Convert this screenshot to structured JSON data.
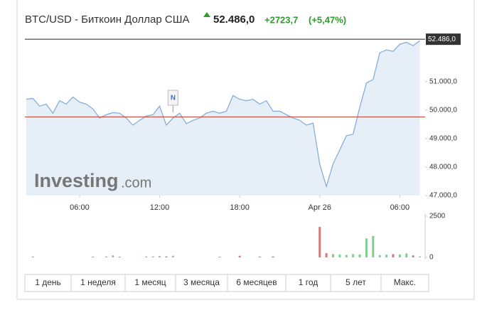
{
  "header": {
    "title": "BTC/USD - Биткоин Доллар США",
    "change": "+2723,7",
    "change_pct": "(+5,47%)"
  },
  "watermark": {
    "brand": "Investing",
    "suffix": ".com"
  },
  "chart_data": [
    {
      "type": "area",
      "x": [
        2.0,
        2.5,
        3.0,
        3.5,
        4.0,
        4.5,
        5.0,
        5.5,
        6.0,
        6.5,
        7.0,
        7.5,
        8.0,
        8.5,
        9.0,
        9.5,
        10.0,
        10.5,
        11.0,
        11.5,
        12.0,
        12.5,
        13.0,
        13.5,
        14.0,
        14.5,
        15.0,
        15.5,
        16.0,
        16.5,
        17.0,
        17.5,
        18.0,
        18.5,
        19.0,
        19.5,
        20.0,
        20.5,
        21.0,
        21.5,
        22.0,
        22.5,
        23.0,
        23.5,
        24.0,
        24.5,
        25.0,
        25.5,
        26.0,
        26.5,
        27.0,
        27.5,
        28.0,
        28.5,
        29.0,
        29.5,
        30.0,
        30.5,
        31.0,
        31.5
      ],
      "values": [
        50380,
        50410,
        50140,
        50210,
        49890,
        50330,
        50210,
        50460,
        50280,
        50210,
        50040,
        49720,
        49840,
        49910,
        49890,
        49720,
        49470,
        49640,
        49790,
        49840,
        50140,
        49470,
        49720,
        49890,
        49520,
        49640,
        49720,
        49890,
        49960,
        49890,
        49960,
        50510,
        50380,
        50330,
        50380,
        50210,
        50330,
        49960,
        49960,
        49840,
        49720,
        49640,
        49470,
        49540,
        48110,
        47320,
        48110,
        48600,
        49100,
        49150,
        50090,
        50950,
        51070,
        52010,
        52110,
        52060,
        52310,
        52380,
        52260,
        52430
      ],
      "color": "#7fa9d6",
      "fill": "#e6eef7",
      "xlim": [
        1.9,
        31.9
      ],
      "xticks": [
        {
          "value": 6,
          "label": "06:00"
        },
        {
          "value": 12,
          "label": "12:00"
        },
        {
          "value": 18,
          "label": "18:00"
        },
        {
          "value": 24,
          "label": "Apr 26"
        },
        {
          "value": 30,
          "label": "06:00"
        }
      ],
      "ylim": [
        47000,
        52490
      ],
      "yticks": [
        {
          "value": 47000,
          "label": "47.000,0"
        },
        {
          "value": 48000,
          "label": "48.000,0"
        },
        {
          "value": 49000,
          "label": "49.000,0"
        },
        {
          "value": 50000,
          "label": "50.000,0"
        },
        {
          "value": 51000,
          "label": "51.000,0"
        }
      ],
      "last": {
        "value": 52486,
        "label": "52.486,0"
      },
      "prev_close": 49760,
      "annotations": [
        {
          "label": "N",
          "x": 13
        }
      ]
    },
    {
      "type": "bar",
      "x": [
        2.0,
        2.5,
        3.0,
        3.5,
        4.0,
        4.5,
        5.0,
        5.5,
        6.0,
        6.5,
        7.0,
        7.5,
        8.0,
        8.5,
        9.0,
        9.5,
        10.0,
        10.5,
        11.0,
        11.5,
        12.0,
        12.5,
        13.0,
        13.5,
        14.0,
        14.5,
        15.0,
        15.5,
        16.0,
        16.5,
        17.0,
        17.5,
        18.0,
        18.5,
        19.0,
        19.5,
        20.0,
        20.5,
        21.0,
        21.5,
        22.0,
        22.5,
        23.0,
        23.5,
        24.0,
        24.5,
        25.0,
        25.5,
        26.0,
        26.5,
        27.0,
        27.5,
        28.0,
        28.5,
        29.0,
        29.5,
        30.0,
        30.5,
        31.0,
        31.5
      ],
      "values": [
        0,
        60,
        0,
        0,
        0,
        0,
        0,
        0,
        0,
        0,
        40,
        0,
        60,
        120,
        40,
        0,
        0,
        0,
        60,
        60,
        80,
        60,
        100,
        0,
        0,
        0,
        0,
        0,
        0,
        40,
        0,
        0,
        100,
        0,
        0,
        50,
        0,
        60,
        0,
        0,
        0,
        0,
        0,
        0,
        1850,
        260,
        200,
        180,
        150,
        200,
        180,
        1150,
        1300,
        140,
        160,
        200,
        180,
        240,
        120,
        60
      ],
      "up_color": "#7fcf8f",
      "down_color": "#d47a7a",
      "xlim": [
        1.9,
        31.9
      ],
      "ylim": [
        0,
        2600
      ],
      "yticks": [
        0,
        2500
      ]
    }
  ],
  "range_buttons": [
    "1 день",
    "1 неделя",
    "1 месяц",
    "3 месяца",
    "6 месяцев",
    "1 год",
    "5 лет",
    "Макс."
  ]
}
